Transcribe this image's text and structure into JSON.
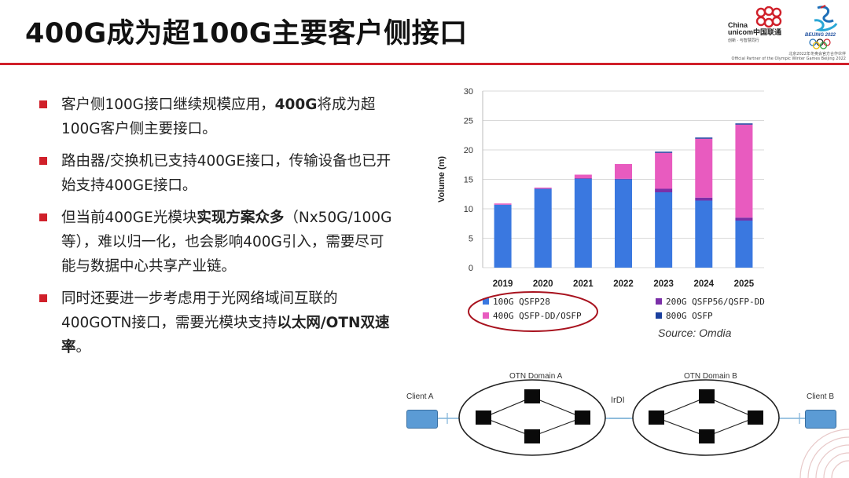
{
  "slide": {
    "title": "400G成为超100G主要客户侧接口",
    "logo": {
      "brand_text_line1": "China",
      "brand_text_line2": "unicom中国联通",
      "brand_slogan": "创新 · 与智慧同行",
      "olympic_text": "BEIJING 2022",
      "partner_cn": "北京2022年冬奥会官方合作伙伴",
      "partner_en": "Official Partner of the Olympic Winter Games Beijing 2022",
      "accent_color": "#d0202a"
    },
    "bullets": [
      {
        "parts": [
          {
            "t": "客户侧100G接口继续规模应用，",
            "b": false
          },
          {
            "t": "400G",
            "b": true
          },
          {
            "t": "将成为超100G客户侧主要接口。",
            "b": false
          }
        ]
      },
      {
        "parts": [
          {
            "t": "路由器/交换机已支持400GE接口，传输设备也已开始支持400GE接口。",
            "b": false
          }
        ]
      },
      {
        "parts": [
          {
            "t": "但当前400GE光模块",
            "b": false
          },
          {
            "t": "实现方案众多",
            "b": true
          },
          {
            "t": "（Nx50G/100G等），难以归一化，也会影响400G引入，需要尽可能与数据中心共享产业链。",
            "b": false
          }
        ]
      },
      {
        "parts": [
          {
            "t": "同时还要进一步考虑用于光网络域间互联的400GOTN接口，需要光模块支持",
            "b": false
          },
          {
            "t": "以太网/OTN双速率",
            "b": true
          },
          {
            "t": "。",
            "b": false
          }
        ]
      }
    ],
    "source": "Source: Omdia"
  },
  "chart_data": {
    "type": "bar",
    "stacked": true,
    "categories": [
      "2019",
      "2020",
      "2021",
      "2022",
      "2023",
      "2024",
      "2025"
    ],
    "ylabel": "Volume (m)",
    "ylim": [
      0,
      30
    ],
    "yticks": [
      "0",
      "5",
      "10",
      "15",
      "20",
      "25",
      "30"
    ],
    "grid": true,
    "legend_placement": "bottom",
    "series": [
      {
        "name": "100G QSFP28",
        "color": "#3a78e0",
        "values": [
          10.7,
          13.4,
          15.1,
          15.0,
          12.8,
          11.4,
          8.0
        ]
      },
      {
        "name": "200G QSFP56/QSFP-DD",
        "color": "#7b2fa8",
        "values": [
          0.0,
          0.0,
          0.1,
          0.1,
          0.6,
          0.5,
          0.5
        ]
      },
      {
        "name": "400G QSFP-DD/OSFP",
        "color": "#e85bbf",
        "values": [
          0.2,
          0.2,
          0.6,
          2.5,
          6.1,
          10.0,
          15.8
        ]
      },
      {
        "name": "800G OSFP",
        "color": "#1a3f9e",
        "values": [
          0.0,
          0.0,
          0.0,
          0.0,
          0.2,
          0.2,
          0.2
        ]
      }
    ],
    "highlight_ellipse_around": [
      "100G QSFP28",
      "400G QSFP-DD/OSFP"
    ]
  },
  "network": {
    "client_a": "Client A",
    "client_b": "Client B",
    "domain_a": "OTN Domain A",
    "domain_b": "OTN Domain B",
    "interdomain": "IrDI"
  }
}
